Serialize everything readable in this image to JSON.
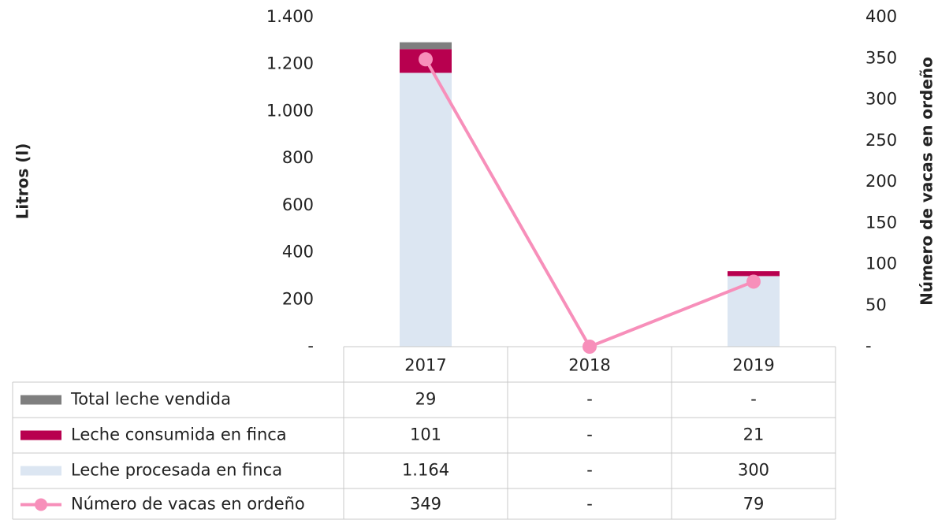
{
  "chart_data": {
    "type": "bar",
    "stacked": true,
    "ylabel": "Litros (l)",
    "y2label": "Número de vacas en ordeño",
    "categories": [
      "2017",
      "2018",
      "2019"
    ],
    "series": [
      {
        "name": "Total leche vendida",
        "color": "#7f7f7f",
        "values": [
          29,
          0,
          0
        ],
        "value_labels": [
          "29",
          "-",
          "-"
        ]
      },
      {
        "name": "Leche consumida en finca",
        "color": "#b8004f",
        "values": [
          101,
          0,
          21
        ],
        "value_labels": [
          "101",
          "-",
          "21"
        ]
      },
      {
        "name": "Leche procesada en finca",
        "color": "#dce6f2",
        "values": [
          1164,
          0,
          300
        ],
        "value_labels": [
          "1.164",
          "-",
          "300"
        ]
      },
      {
        "name": "Número de vacas en ordeño",
        "color": "#f78fba",
        "axis": "y2",
        "values": [
          349,
          0,
          79
        ],
        "value_labels": [
          "349",
          "-",
          "79"
        ]
      }
    ],
    "ylim": [
      0,
      1400
    ],
    "yticks": [
      {
        "value": 0,
        "label": "-"
      },
      200,
      400,
      600,
      800,
      {
        "value": 1000,
        "label": "1.000"
      },
      {
        "value": 1200,
        "label": "1.200"
      },
      {
        "value": 1400,
        "label": "1.400"
      }
    ],
    "y2lim": [
      0,
      400
    ],
    "y2ticks": [
      {
        "value": 0,
        "label": "-"
      },
      50,
      100,
      150,
      200,
      250,
      300,
      350,
      400
    ]
  }
}
